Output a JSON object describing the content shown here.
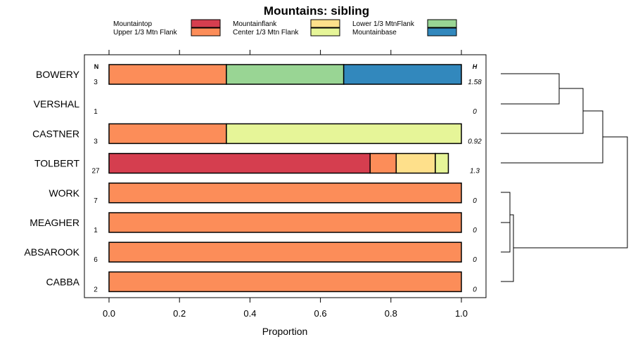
{
  "chart_data": {
    "type": "bar",
    "orientation": "horizontal",
    "stacked": true,
    "title": "Mountains: sibling",
    "xlabel": "Proportion",
    "xlim": [
      0,
      1
    ],
    "xticks": [
      "0.0",
      "0.2",
      "0.4",
      "0.6",
      "0.8",
      "1.0"
    ],
    "n_header": "N",
    "h_header": "H",
    "legend": [
      {
        "name": "Mountaintop",
        "color": "#d53e4f"
      },
      {
        "name": "Upper 1/3 Mtn Flank",
        "color": "#fc8d59"
      },
      {
        "name": "Mountainflank",
        "color": "#fee08b"
      },
      {
        "name": "Center 1/3 Mtn Flank",
        "color": "#e6f598"
      },
      {
        "name": "Lower 1/3 MtnFlank",
        "color": "#99d594"
      },
      {
        "name": "Mountainbase",
        "color": "#3288bd"
      }
    ],
    "categories": [
      "BOWERY",
      "VERSHAL",
      "CASTNER",
      "TOLBERT",
      "WORK",
      "MEAGHER",
      "ABSAROOK",
      "CABBA"
    ],
    "n": [
      "3",
      "1",
      "3",
      "27",
      "7",
      "1",
      "6",
      "2"
    ],
    "h": [
      "1.58",
      "0",
      "0.92",
      "1.3",
      "0",
      "0",
      "0",
      "0"
    ],
    "series": [
      {
        "name": "Mountaintop",
        "values": [
          0,
          0,
          0,
          0.741,
          0,
          0,
          0,
          0
        ]
      },
      {
        "name": "Upper 1/3 Mtn Flank",
        "values": [
          0.333,
          0,
          0.333,
          0.074,
          1,
          1,
          1,
          1
        ]
      },
      {
        "name": "Mountainflank",
        "values": [
          0,
          0,
          0,
          0.111,
          0,
          0,
          0,
          0
        ]
      },
      {
        "name": "Center 1/3 Mtn Flank",
        "values": [
          0,
          0,
          0.667,
          0.037,
          0,
          0,
          0,
          0
        ]
      },
      {
        "name": "Lower 1/3 MtnFlank",
        "values": [
          0.333,
          0,
          0,
          0,
          0,
          0,
          0,
          0
        ]
      },
      {
        "name": "Mountainbase",
        "values": [
          0.334,
          0,
          0,
          0,
          0,
          0,
          0,
          0
        ]
      }
    ]
  }
}
